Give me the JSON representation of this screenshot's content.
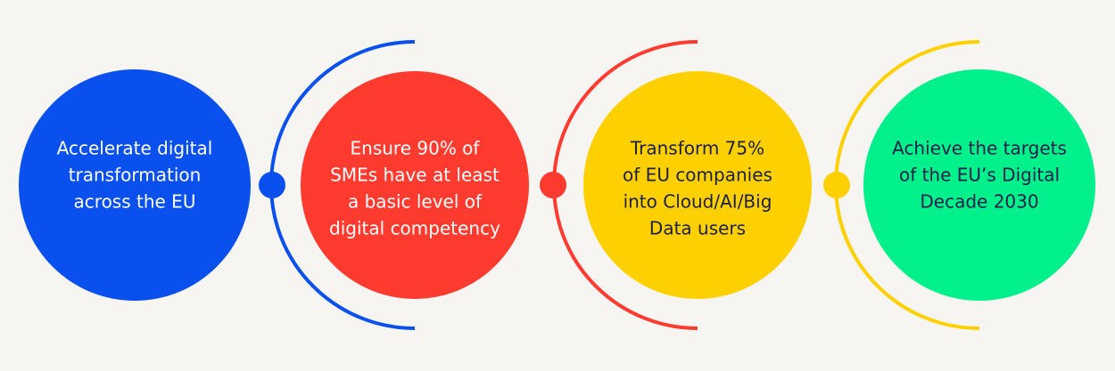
{
  "nodes": [
    {
      "lines": [
        "Accelerate digital",
        "transformation",
        "across the EU"
      ]
    },
    {
      "lines": [
        "Ensure 90% of",
        "SMEs have at least",
        "a basic level of",
        "digital competency"
      ]
    },
    {
      "lines": [
        "Transform 75%",
        "of EU companies",
        "into Cloud/AI/Big",
        "Data users"
      ]
    },
    {
      "lines": [
        "Achieve the targets",
        "of the EU’s Digital",
        "Decade 2030"
      ]
    }
  ]
}
